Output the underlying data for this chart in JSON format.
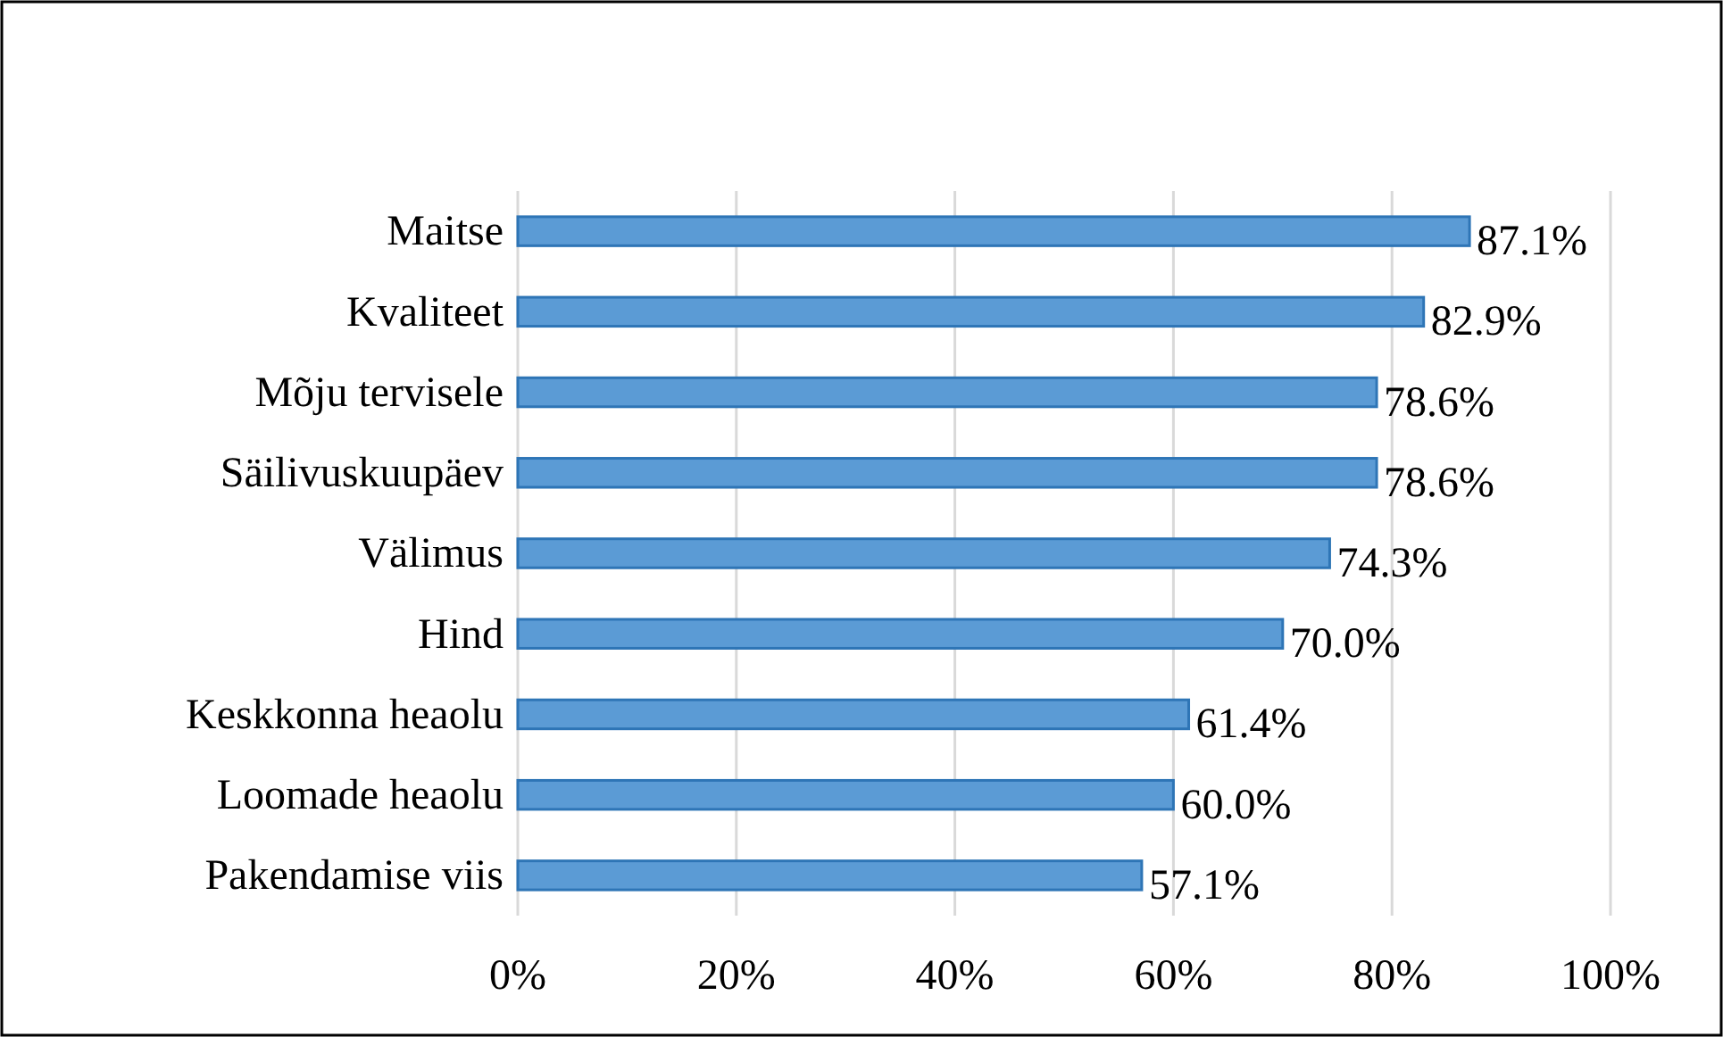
{
  "chart_data": {
    "type": "bar",
    "orientation": "horizontal",
    "categories": [
      "Maitse",
      "Kvaliteet",
      "Mõju tervisele",
      "Säilivuskuupäev",
      "Välimus ",
      "Hind",
      "Keskkonna heaolu",
      "Loomade heaolu",
      "Pakendamise viis"
    ],
    "values": [
      87.1,
      82.9,
      78.6,
      78.6,
      74.3,
      70.0,
      61.4,
      60.0,
      57.1
    ],
    "value_labels": [
      "87.1%",
      "82.9%",
      "78.6%",
      "78.6%",
      "74.3%",
      "70.0%",
      "61.4%",
      "60.0%",
      "57.1%"
    ],
    "color": "#5b9bd5",
    "xlim": [
      0,
      100
    ],
    "xticks": [
      {
        "value": 0,
        "label": "0%"
      },
      {
        "value": 20,
        "label": "20%"
      },
      {
        "value": 40,
        "label": "40%"
      },
      {
        "value": 60,
        "label": "60%"
      },
      {
        "value": 80,
        "label": "80%"
      },
      {
        "value": 100,
        "label": "100%"
      }
    ],
    "grid": "x"
  }
}
